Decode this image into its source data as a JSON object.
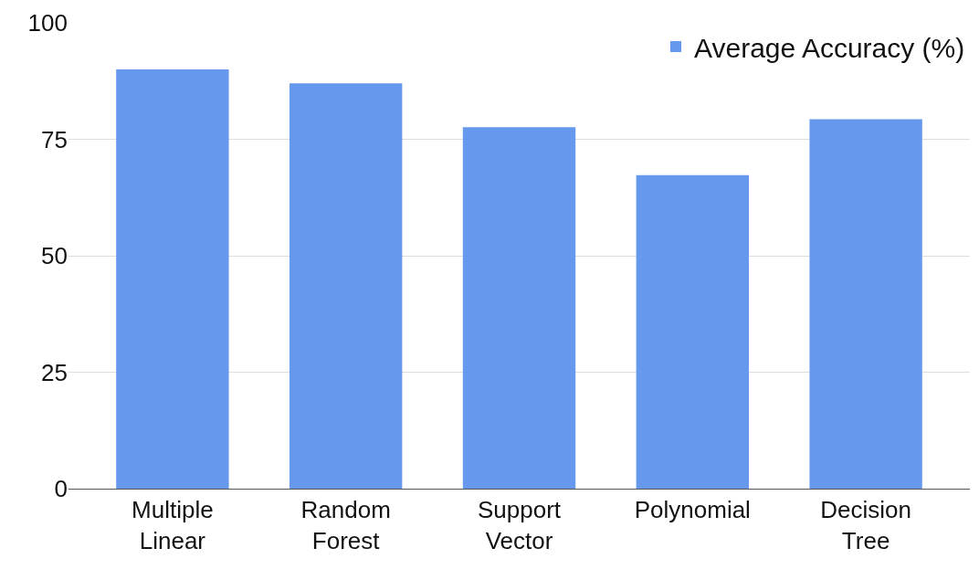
{
  "chart_data": {
    "type": "bar",
    "categories": [
      "Multiple\nLinear",
      "Random\nForest",
      "Support\nVector",
      "Polynomial",
      "Decision\nTree"
    ],
    "series": [
      {
        "name": "Average Accuracy (%)",
        "color": "#6699ee",
        "values": [
          90,
          87,
          77.6,
          67.3,
          79.3
        ]
      }
    ],
    "ylim": [
      0,
      100
    ],
    "yticks": [
      0,
      25,
      50,
      75,
      100
    ],
    "grid": "y",
    "legend": "top right"
  }
}
